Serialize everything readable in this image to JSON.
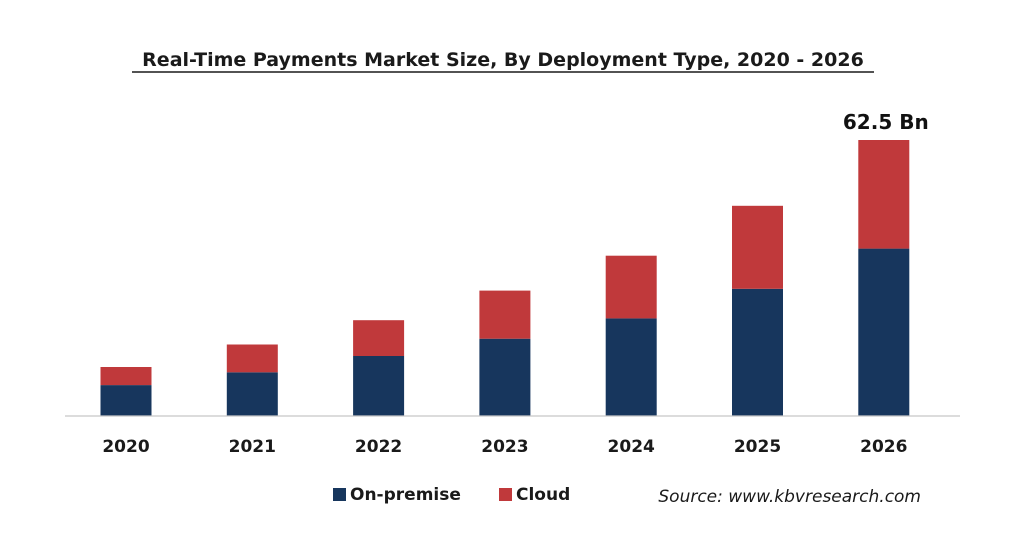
{
  "chart_data": {
    "type": "bar",
    "stacked": true,
    "title": "Real-Time Payments Market Size, By Deployment Type, 2020 - 2026",
    "categories": [
      "2020",
      "2021",
      "2022",
      "2023",
      "2024",
      "2025",
      "2026"
    ],
    "series": [
      {
        "name": "On-premise",
        "color": "#17365d",
        "values": [
          7.0,
          9.9,
          13.6,
          17.5,
          22.1,
          28.8,
          37.9
        ]
      },
      {
        "name": "Cloud",
        "color": "#c0393b",
        "values": [
          4.1,
          6.3,
          8.1,
          10.9,
          14.2,
          18.8,
          24.6
        ]
      }
    ],
    "annotation": {
      "category": "2026",
      "text": "62.5 Bn"
    },
    "ylim": [
      0,
      62.5
    ],
    "grid": false,
    "legend_position": "bottom"
  },
  "source": "Source: www.kbvresearch.com"
}
